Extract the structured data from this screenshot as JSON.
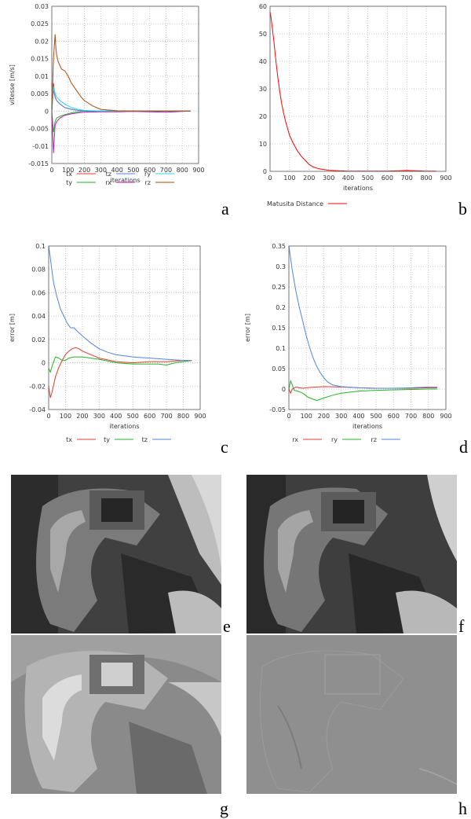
{
  "panel_letters": [
    "a",
    "b",
    "c",
    "d",
    "e",
    "f",
    "g",
    "h"
  ],
  "chart_data": [
    {
      "id": "a",
      "type": "line",
      "xlabel": "iterations",
      "ylabel": "vitesse [m/s]",
      "xlim": [
        0,
        900
      ],
      "ylim": [
        -0.015,
        0.03
      ],
      "xticks": [
        0,
        100,
        200,
        300,
        400,
        500,
        600,
        700,
        800,
        900
      ],
      "yticks": [
        -0.015,
        -0.01,
        -0.005,
        0,
        0.005,
        0.01,
        0.015,
        0.02,
        0.025,
        0.03
      ],
      "ytick_labels": [
        "-0.015",
        "-0.01",
        "-0.005",
        "0",
        "0.005",
        "0.01",
        "0.015",
        "0.02",
        "0.025",
        "0.03"
      ],
      "grid": true,
      "legend": "bottom, 3 columns",
      "series": [
        {
          "name": "tx",
          "color": "#e8392e",
          "x": [
            0,
            10,
            20,
            30,
            50,
            80,
            120,
            160,
            200,
            300,
            400,
            500,
            600,
            700,
            800,
            850
          ],
          "y": [
            0,
            0.008,
            0.004,
            0.003,
            0.002,
            0.001,
            0.0005,
            0.0002,
            0,
            0,
            0,
            0,
            0,
            0,
            0,
            0
          ]
        },
        {
          "name": "ty",
          "color": "#22b522",
          "x": [
            0,
            10,
            20,
            30,
            50,
            80,
            120,
            160,
            200,
            300,
            400,
            500,
            600,
            700,
            800,
            850
          ],
          "y": [
            0,
            -0.006,
            -0.003,
            -0.002,
            -0.0015,
            -0.001,
            -0.0005,
            -0.0002,
            0,
            0,
            0,
            0,
            0,
            0,
            0,
            0
          ]
        },
        {
          "name": "tz",
          "color": "#4f86e0",
          "x": [
            0,
            10,
            20,
            30,
            50,
            80,
            120,
            160,
            200,
            300,
            400,
            500,
            600,
            700,
            800,
            850
          ],
          "y": [
            0,
            0.006,
            0.004,
            0.003,
            0.002,
            0.001,
            0.0005,
            0.0002,
            0,
            0,
            0,
            0,
            0,
            0,
            0,
            0
          ]
        },
        {
          "name": "rx",
          "color": "#c519c5",
          "x": [
            0,
            10,
            20,
            30,
            50,
            80,
            120,
            160,
            200,
            300,
            400,
            500,
            600,
            700,
            800,
            850
          ],
          "y": [
            0,
            -0.012,
            -0.004,
            -0.003,
            -0.002,
            -0.0012,
            -0.0008,
            -0.0005,
            -0.0003,
            -0.0002,
            -0.0002,
            -0.0001,
            -0.0002,
            -0.0003,
            -0.0001,
            0
          ]
        },
        {
          "name": "ry",
          "color": "#29d4ea",
          "x": [
            0,
            10,
            20,
            30,
            50,
            80,
            120,
            160,
            200,
            300,
            400,
            500,
            600,
            700,
            800,
            850
          ],
          "y": [
            0,
            0.007,
            0.005,
            0.004,
            0.003,
            0.002,
            0.001,
            0.0005,
            0.0002,
            0,
            0,
            0,
            0,
            0,
            0,
            0
          ]
        },
        {
          "name": "rz",
          "color": "#b24a0e",
          "x": [
            0,
            10,
            20,
            25,
            30,
            40,
            60,
            80,
            100,
            120,
            150,
            180,
            200,
            250,
            300,
            400,
            500,
            600,
            700,
            800,
            850
          ],
          "y": [
            0,
            0.015,
            0.022,
            0.018,
            0.016,
            0.014,
            0.012,
            0.0115,
            0.01,
            0.008,
            0.006,
            0.004,
            0.003,
            0.0015,
            0.0005,
            0.0001,
            0,
            0,
            0,
            0,
            0
          ]
        }
      ]
    },
    {
      "id": "b",
      "type": "line",
      "xlabel": "iterations",
      "ylabel": "",
      "xlim": [
        0,
        900
      ],
      "ylim": [
        0,
        60
      ],
      "xticks": [
        0,
        100,
        200,
        300,
        400,
        500,
        600,
        700,
        800,
        900
      ],
      "yticks": [
        0,
        10,
        20,
        30,
        40,
        50,
        60
      ],
      "ytick_labels": [
        "0",
        "10",
        "20",
        "30",
        "40",
        "50",
        "60"
      ],
      "grid": true,
      "legend": "bottom",
      "series": [
        {
          "name": "Matusita Distance",
          "color": "#ff0000",
          "x": [
            0,
            5,
            10,
            20,
            30,
            40,
            50,
            60,
            70,
            80,
            90,
            100,
            120,
            140,
            160,
            180,
            200,
            220,
            250,
            300,
            350,
            400,
            500,
            600,
            700,
            800,
            850
          ],
          "y": [
            58,
            56,
            53,
            47,
            40,
            34,
            29,
            24.5,
            21,
            18,
            15.5,
            13,
            10,
            7.5,
            5.5,
            4,
            2.5,
            1.6,
            0.9,
            0.4,
            0.2,
            0.1,
            0.1,
            0.1,
            0.3,
            0.1,
            0.1
          ]
        }
      ]
    },
    {
      "id": "c",
      "type": "line",
      "xlabel": "iterations",
      "ylabel": "error [m]",
      "xlim": [
        0,
        900
      ],
      "ylim": [
        -0.04,
        0.1
      ],
      "xticks": [
        0,
        100,
        200,
        300,
        400,
        500,
        600,
        700,
        800,
        900
      ],
      "yticks": [
        -0.04,
        -0.02,
        0,
        0.02,
        0.04,
        0.06,
        0.08,
        0.1
      ],
      "ytick_labels": [
        "-0.04",
        "-0.02",
        "0",
        "0.02",
        "0.04",
        "0.06",
        "0.08",
        "0.1"
      ],
      "grid": true,
      "legend": "bottom",
      "series": [
        {
          "name": "tx",
          "color": "#e8392e",
          "x": [
            0,
            10,
            20,
            40,
            60,
            80,
            100,
            120,
            140,
            160,
            180,
            200,
            250,
            300,
            400,
            500,
            600,
            700,
            800,
            850
          ],
          "y": [
            -0.02,
            -0.03,
            -0.025,
            -0.012,
            -0.004,
            0.002,
            0.007,
            0.01,
            0.012,
            0.013,
            0.012,
            0.01,
            0.007,
            0.004,
            0.001,
            0,
            0.001,
            0.001,
            0.002,
            0.002
          ]
        },
        {
          "name": "ty",
          "color": "#22b522",
          "x": [
            0,
            10,
            20,
            40,
            60,
            80,
            100,
            120,
            150,
            200,
            250,
            300,
            400,
            500,
            600,
            650,
            700,
            750,
            800,
            850
          ],
          "y": [
            -0.005,
            -0.008,
            -0.003,
            0.005,
            0.004,
            0.002,
            0.002,
            0.004,
            0.005,
            0.005,
            0.004,
            0.003,
            0,
            -0.001,
            -0.001,
            -0.001,
            -0.002,
            0,
            0.001,
            0.002
          ]
        },
        {
          "name": "tz",
          "color": "#4f86e0",
          "x": [
            0,
            10,
            20,
            30,
            50,
            70,
            90,
            110,
            130,
            150,
            170,
            200,
            250,
            300,
            350,
            400,
            450,
            500,
            600,
            700,
            800,
            850
          ],
          "y": [
            0.1,
            0.09,
            0.078,
            0.068,
            0.056,
            0.046,
            0.04,
            0.034,
            0.03,
            0.03,
            0.027,
            0.023,
            0.017,
            0.012,
            0.009,
            0.007,
            0.006,
            0.005,
            0.004,
            0.003,
            0.002,
            0.002
          ]
        }
      ]
    },
    {
      "id": "d",
      "type": "line",
      "xlabel": "iterations",
      "ylabel": "error [m]",
      "xlim": [
        0,
        900
      ],
      "ylim": [
        -0.05,
        0.35
      ],
      "xticks": [
        0,
        100,
        200,
        300,
        400,
        500,
        600,
        700,
        800,
        900
      ],
      "yticks": [
        -0.05,
        0,
        0.05,
        0.1,
        0.15,
        0.2,
        0.25,
        0.3,
        0.35
      ],
      "ytick_labels": [
        "-0.05",
        "0",
        "0.05",
        "0.1",
        "0.15",
        "0.2",
        "0.25",
        "0.3",
        "0.35"
      ],
      "grid": true,
      "legend": "bottom",
      "series": [
        {
          "name": "rx",
          "color": "#e8392e",
          "x": [
            0,
            10,
            20,
            40,
            60,
            80,
            120,
            200,
            300,
            400,
            500,
            600,
            700,
            800,
            850
          ],
          "y": [
            0,
            -0.01,
            0,
            0.005,
            0.003,
            0.002,
            0.004,
            0.006,
            0.005,
            0.003,
            0.002,
            0.002,
            0.002,
            0.003,
            0.003
          ]
        },
        {
          "name": "ry",
          "color": "#22b522",
          "x": [
            0,
            10,
            20,
            30,
            50,
            80,
            110,
            140,
            160,
            200,
            250,
            300,
            400,
            500,
            600,
            700,
            800,
            850
          ],
          "y": [
            0,
            0.02,
            0.01,
            -0.003,
            -0.005,
            -0.01,
            -0.02,
            -0.025,
            -0.028,
            -0.022,
            -0.015,
            -0.01,
            -0.005,
            -0.003,
            -0.002,
            -0.001,
            0,
            0
          ]
        },
        {
          "name": "rz",
          "color": "#4f86e0",
          "x": [
            0,
            10,
            20,
            40,
            60,
            80,
            100,
            120,
            140,
            160,
            180,
            200,
            220,
            250,
            300,
            400,
            500,
            600,
            700,
            800,
            850
          ],
          "y": [
            0.35,
            0.32,
            0.29,
            0.24,
            0.2,
            0.165,
            0.13,
            0.1,
            0.075,
            0.055,
            0.04,
            0.028,
            0.018,
            0.01,
            0.006,
            0.003,
            0.002,
            0.002,
            0.003,
            0.005,
            0.005
          ]
        }
      ]
    }
  ]
}
